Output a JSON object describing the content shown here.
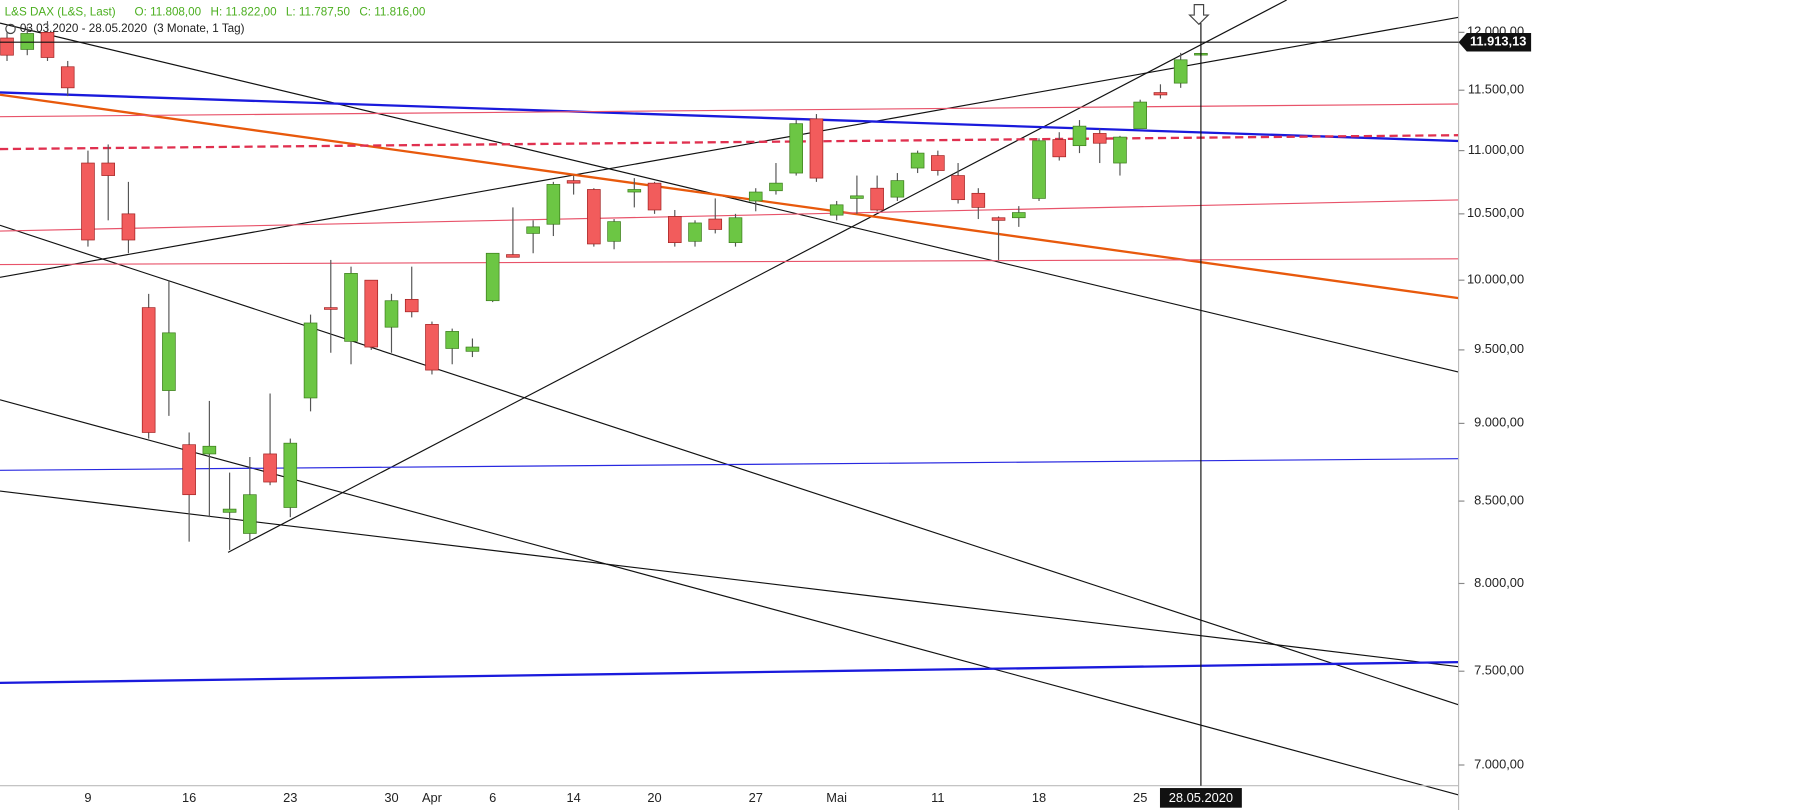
{
  "chart_data": {
    "type": "candlestick",
    "title": "L&S DAX (L&S, Last)",
    "ohlc_text": [
      "O: 11.808,00",
      "H: 11.822,00",
      "L: 11.787,50",
      "C: 11.816,00"
    ],
    "subtitle": "03.03.2020 - 28.05.2020",
    "period": "(3 Monate, 1 Tag)",
    "categories": [
      null,
      null,
      null,
      null,
      "9",
      null,
      null,
      null,
      null,
      "16",
      null,
      null,
      null,
      null,
      "23",
      null,
      null,
      null,
      null,
      "30",
      null,
      "Apr",
      null,
      null,
      "6",
      null,
      null,
      null,
      "14",
      null,
      null,
      null,
      "20",
      null,
      null,
      null,
      null,
      "27",
      null,
      null,
      null,
      "Mai",
      null,
      null,
      null,
      null,
      "11",
      null,
      null,
      null,
      null,
      "18",
      null,
      null,
      null,
      null,
      "25",
      null,
      null,
      "28.05.2020"
    ],
    "open": [
      11950,
      11850,
      12000,
      11700,
      10900,
      10900,
      10500,
      9800,
      9220,
      8860,
      8800,
      8430,
      8300,
      8800,
      8460,
      9170,
      9800,
      9560,
      10000,
      9660,
      9860,
      9680,
      9510,
      9490,
      9850,
      10190,
      10350,
      10420,
      10760,
      10690,
      10290,
      10670,
      10740,
      10480,
      10290,
      10460,
      10280,
      10600,
      10680,
      10820,
      11260,
      10490,
      10620,
      10700,
      10630,
      10860,
      10960,
      10800,
      10660,
      10470,
      10470,
      10620,
      11090,
      11040,
      11140,
      10900,
      11180,
      11480,
      11560,
      11808
    ],
    "high": [
      12000,
      12050,
      12100,
      11750,
      11000,
      11050,
      10750,
      9900,
      10000,
      8940,
      9150,
      8680,
      8780,
      9200,
      8900,
      9750,
      10150,
      10100,
      10000,
      9900,
      10100,
      9700,
      9650,
      9580,
      10200,
      10550,
      10450,
      10750,
      10800,
      10700,
      10460,
      10780,
      10750,
      10530,
      10450,
      10620,
      10500,
      10700,
      10900,
      11250,
      11300,
      10600,
      10800,
      10800,
      10820,
      11000,
      11000,
      10900,
      10700,
      10480,
      10560,
      11100,
      11150,
      11250,
      11180,
      11120,
      11420,
      11550,
      11820,
      11822
    ],
    "low": [
      11750,
      11800,
      11750,
      11450,
      10250,
      10450,
      10200,
      8900,
      9050,
      8250,
      8400,
      8200,
      8250,
      8600,
      8400,
      9080,
      9480,
      9400,
      9500,
      9480,
      9730,
      9330,
      9400,
      9450,
      9840,
      10180,
      10200,
      10330,
      10650,
      10250,
      10230,
      10550,
      10500,
      10250,
      10250,
      10350,
      10250,
      10520,
      10650,
      10800,
      10750,
      10450,
      10500,
      10520,
      10600,
      10820,
      10800,
      10580,
      10460,
      10150,
      10400,
      10600,
      10920,
      10980,
      10900,
      10800,
      11180,
      11430,
      11520,
      11787.5
    ],
    "close": [
      11800,
      11990,
      11780,
      11520,
      10300,
      10800,
      10300,
      8940,
      9620,
      8540,
      8850,
      8450,
      8540,
      8620,
      8870,
      9690,
      9790,
      10050,
      9520,
      9850,
      9770,
      9360,
      9630,
      9520,
      10200,
      10170,
      10400,
      10730,
      10740,
      10270,
      10440,
      10690,
      10530,
      10280,
      10430,
      10380,
      10470,
      10670,
      10740,
      11220,
      10780,
      10570,
      10640,
      10530,
      10760,
      10980,
      10840,
      10610,
      10550,
      10450,
      10510,
      11080,
      10950,
      11200,
      11060,
      11110,
      11400,
      11460,
      11760,
      11816
    ],
    "up_color": "#6cc644",
    "down_color": "#f25c5c",
    "log_scale": true,
    "ylim": [
      6894,
      12289
    ],
    "yticks": [
      {
        "value": 7000,
        "label": "7.000,00"
      },
      {
        "value": 7500,
        "label": "7.500,00"
      },
      {
        "value": 8000,
        "label": "8.000,00"
      },
      {
        "value": 8500,
        "label": "8.500,00"
      },
      {
        "value": 9000,
        "label": "9.000,00"
      },
      {
        "value": 9500,
        "label": "9.500,00"
      },
      {
        "value": 10000,
        "label": "10.000,00"
      },
      {
        "value": 10500,
        "label": "10.500,00"
      },
      {
        "value": 11000,
        "label": "11.000,00"
      },
      {
        "value": 11500,
        "label": "11.500,00"
      },
      {
        "value": 12000,
        "label": "12.000,00"
      }
    ],
    "last_price": {
      "value": 11913.13,
      "label": "11.913,13"
    }
  }
}
